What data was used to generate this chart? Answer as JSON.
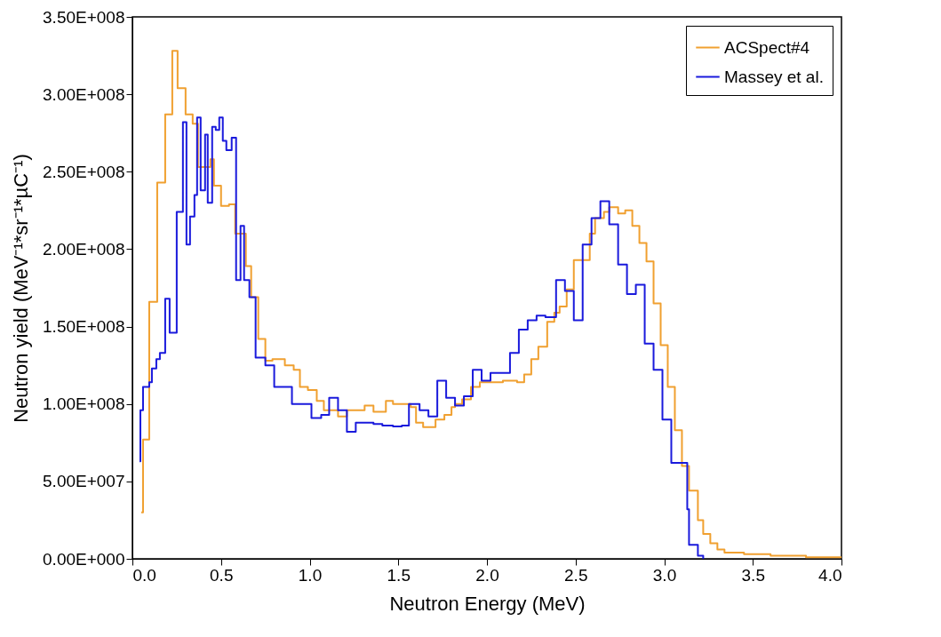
{
  "chart_data": {
    "type": "step",
    "xlabel": "Neutron Energy (MeV)",
    "ylabel": "Neutron yield (MeV⁻¹*sr⁻¹*µC⁻¹)",
    "xlim": [
      0,
      4
    ],
    "xticks": [
      {
        "value": 0,
        "label": "0.0"
      },
      0.5,
      {
        "value": 1,
        "label": "1.0"
      },
      1.5,
      {
        "value": 2,
        "label": "2.0"
      },
      2.5,
      {
        "value": 3,
        "label": "3.0"
      },
      3.5,
      {
        "value": 4,
        "label": "4.0"
      }
    ],
    "ylim": [
      0,
      350000000
    ],
    "yticks": [
      {
        "value": 0,
        "label": "0.00E+000"
      },
      {
        "value": 50000000,
        "label": "5.00E+007"
      },
      {
        "value": 100000000,
        "label": "1.00E+008"
      },
      {
        "value": 150000000,
        "label": "1.50E+008"
      },
      {
        "value": 200000000,
        "label": "2.00E+008"
      },
      {
        "value": 250000000,
        "label": "2.50E+008"
      },
      {
        "value": 300000000,
        "label": "3.00E+008"
      },
      {
        "value": 350000000,
        "label": "3.50E+008"
      }
    ],
    "grid": false,
    "legend": "top right",
    "series": [
      {
        "name": "ACSpect#4",
        "color": "#f0a030",
        "x": [
          0.05,
          0.06,
          0.095,
          0.14,
          0.185,
          0.225,
          0.255,
          0.3,
          0.34,
          0.37,
          0.44,
          0.46,
          0.5,
          0.545,
          0.58,
          0.64,
          0.67,
          0.71,
          0.75,
          0.79,
          0.86,
          0.91,
          0.945,
          0.99,
          1.04,
          1.08,
          1.16,
          1.21,
          1.31,
          1.36,
          1.43,
          1.47,
          1.57,
          1.6,
          1.64,
          1.71,
          1.76,
          1.8,
          1.82,
          1.86,
          1.91,
          1.96,
          2.09,
          2.17,
          2.21,
          2.25,
          2.29,
          2.34,
          2.38,
          2.41,
          2.45,
          2.49,
          2.58,
          2.61,
          2.66,
          2.69,
          2.74,
          2.78,
          2.82,
          2.86,
          2.9,
          2.94,
          2.98,
          3.02,
          3.06,
          3.1,
          3.14,
          3.19,
          3.22,
          3.26,
          3.3,
          3.34,
          3.45,
          3.6,
          3.8,
          4.0
        ],
        "values": [
          30000000,
          77000000,
          166000000,
          243000000,
          287000000,
          328000000,
          304000000,
          287000000,
          281000000,
          253000000,
          258000000,
          241000000,
          228000000,
          229000000,
          210000000,
          189000000,
          169000000,
          142000000,
          128000000,
          129000000,
          125000000,
          122000000,
          111000000,
          109000000,
          102000000,
          96000000,
          92000000,
          96000000,
          99000000,
          95000000,
          102000000,
          100000000,
          98000000,
          88000000,
          85000000,
          90000000,
          93000000,
          98000000,
          100000000,
          103000000,
          111000000,
          114000000,
          115000000,
          114000000,
          119000000,
          129000000,
          137000000,
          153000000,
          159000000,
          163000000,
          174000000,
          193000000,
          210000000,
          220000000,
          224000000,
          227000000,
          223000000,
          225000000,
          215000000,
          204000000,
          192000000,
          165000000,
          138000000,
          111000000,
          83000000,
          60000000,
          44000000,
          25000000,
          16000000,
          10000000,
          6000000,
          4000000,
          3000000,
          2000000,
          1000000,
          1000000
        ]
      },
      {
        "name": "Massey et al.",
        "color": "#1a1adc",
        "x": [
          0.04,
          0.045,
          0.06,
          0.095,
          0.11,
          0.135,
          0.155,
          0.185,
          0.21,
          0.25,
          0.285,
          0.305,
          0.325,
          0.35,
          0.365,
          0.385,
          0.41,
          0.425,
          0.45,
          0.47,
          0.49,
          0.51,
          0.53,
          0.56,
          0.585,
          0.61,
          0.63,
          0.66,
          0.695,
          0.75,
          0.8,
          0.9,
          1.01,
          1.065,
          1.11,
          1.16,
          1.21,
          1.26,
          1.36,
          1.41,
          1.47,
          1.52,
          1.56,
          1.62,
          1.67,
          1.72,
          1.77,
          1.82,
          1.87,
          1.92,
          1.97,
          2.02,
          2.13,
          2.18,
          2.23,
          2.28,
          2.33,
          2.39,
          2.44,
          2.49,
          2.54,
          2.59,
          2.64,
          2.69,
          2.74,
          2.79,
          2.84,
          2.89,
          2.94,
          2.99,
          3.04,
          3.13,
          3.14,
          3.19,
          3.22
        ],
        "values": [
          63000000,
          96000000,
          111000000,
          114000000,
          123000000,
          129000000,
          133000000,
          168000000,
          146000000,
          224000000,
          282000000,
          203000000,
          221000000,
          235000000,
          285000000,
          238000000,
          274000000,
          230000000,
          279000000,
          277000000,
          285000000,
          270000000,
          264000000,
          272000000,
          180000000,
          215000000,
          180000000,
          169000000,
          130000000,
          125000000,
          111000000,
          100000000,
          91000000,
          93000000,
          104000000,
          96000000,
          82000000,
          88000000,
          87000000,
          86000000,
          85500000,
          86000000,
          100000000,
          96000000,
          92000000,
          115000000,
          104000000,
          99000000,
          105000000,
          122000000,
          115000000,
          120000000,
          133000000,
          148000000,
          154000000,
          157000000,
          156000000,
          180000000,
          173000000,
          154000000,
          203000000,
          220000000,
          231000000,
          216000000,
          190000000,
          171000000,
          177000000,
          139000000,
          122000000,
          90000000,
          62000000,
          32000000,
          9000000,
          2000000,
          0
        ]
      }
    ]
  }
}
